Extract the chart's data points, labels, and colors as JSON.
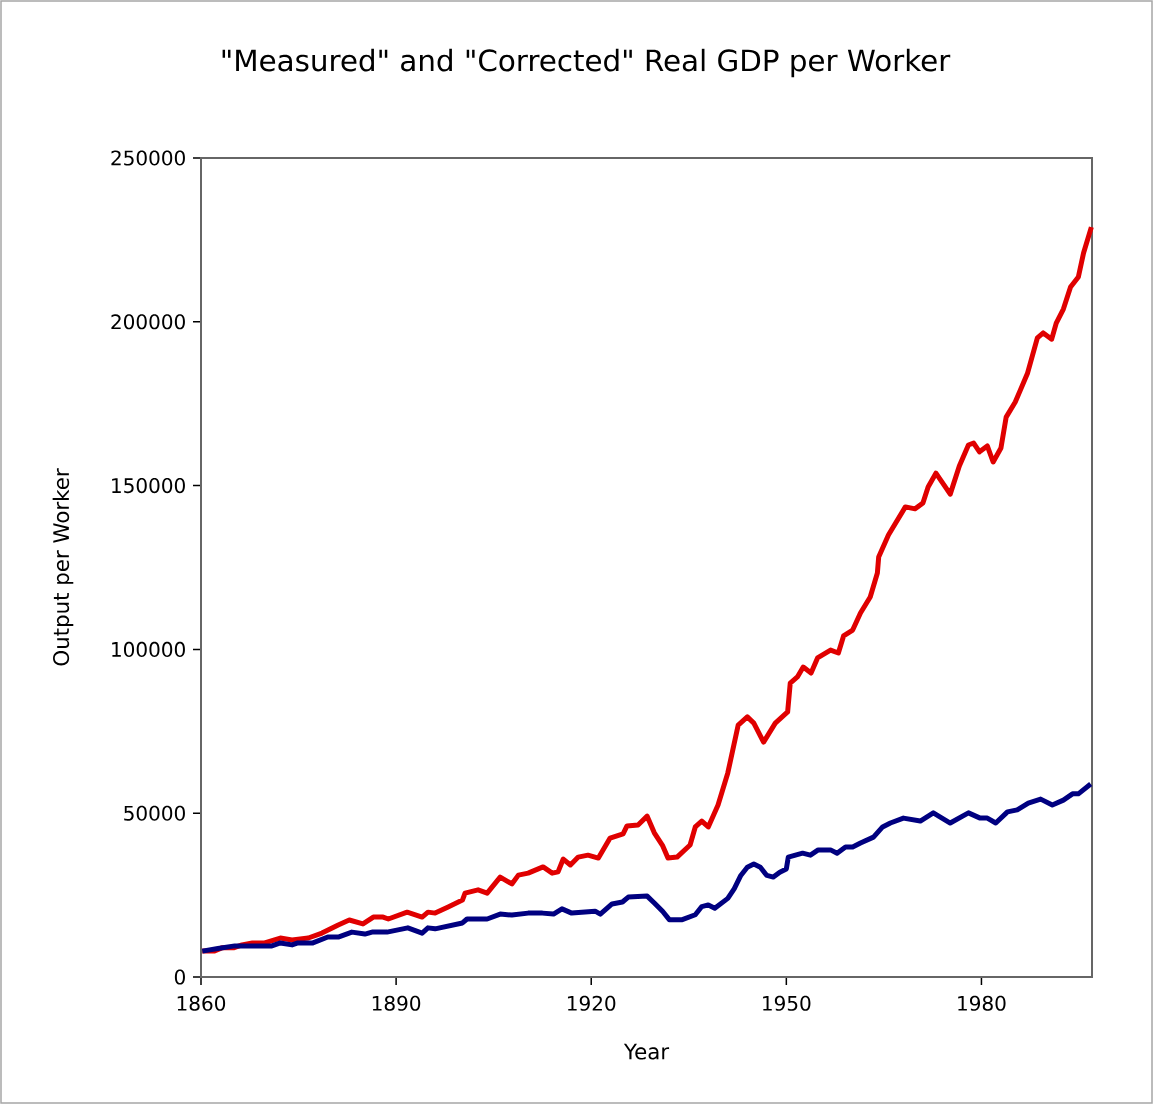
{
  "chart_data": {
    "type": "line",
    "title": "\"Measured\" and \"Corrected\" Real GDP per Worker",
    "xlabel": "Year",
    "ylabel": "Output per Worker",
    "xlim": [
      1860,
      1997
    ],
    "ylim": [
      0,
      250000
    ],
    "xticks": [
      1860,
      1890,
      1920,
      1950,
      1980
    ],
    "yticks": [
      0,
      50000,
      100000,
      150000,
      200000,
      250000
    ],
    "series": [
      {
        "color": "#e00000",
        "x": [
          1860.2,
          1862,
          1863.2,
          1865,
          1866.3,
          1867.9,
          1869.8,
          1872.2,
          1874,
          1876.5,
          1878.6,
          1881.1,
          1882.8,
          1884.9,
          1886.5,
          1888,
          1888.8,
          1891.7,
          1894,
          1894.9,
          1896,
          1898,
          1900.2,
          1900.6,
          1902.6,
          1904,
          1906,
          1907.8,
          1908.8,
          1910.3,
          1912.6,
          1914,
          1914.9,
          1915.7,
          1916.8,
          1918,
          1919.5,
          1921.1,
          1922.9,
          1924.9,
          1925.5,
          1927.2,
          1928.6,
          1929.7,
          1931,
          1931.8,
          1933.2,
          1935.2,
          1936,
          1937,
          1938,
          1939.5,
          1941,
          1942.6,
          1944,
          1945,
          1946.5,
          1948.3,
          1950.2,
          1950.6,
          1951.7,
          1952.6,
          1953.8,
          1954.8,
          1956.8,
          1958,
          1958.8,
          1960.2,
          1961.4,
          1962.9,
          1964,
          1964.2,
          1965.7,
          1968.3,
          1969.8,
          1971,
          1971.8,
          1973,
          1975.2,
          1976.6,
          1978,
          1978.8,
          1979.7,
          1980.9,
          1981.8,
          1983,
          1983.8,
          1985.2,
          1987.1,
          1988.6,
          1989.5,
          1990.8,
          1991.5,
          1992.6,
          1993.7,
          1994.9,
          1995.7,
          1996.9
        ],
        "values": [
          7900,
          7900,
          8900,
          8900,
          9800,
          10400,
          10400,
          11900,
          11300,
          11900,
          13400,
          15900,
          17400,
          16200,
          18300,
          18300,
          17700,
          19800,
          18300,
          19800,
          19500,
          21400,
          23500,
          25600,
          26600,
          25600,
          30500,
          28400,
          31100,
          31700,
          33600,
          31700,
          32100,
          36000,
          34200,
          36600,
          37200,
          36300,
          42400,
          43700,
          46100,
          46400,
          49100,
          44000,
          40000,
          36300,
          36600,
          40300,
          45800,
          47600,
          45800,
          52500,
          62300,
          76900,
          79400,
          77500,
          71700,
          77500,
          80900,
          89700,
          91600,
          94600,
          92800,
          97400,
          99800,
          98900,
          104100,
          105900,
          111100,
          116000,
          123300,
          128200,
          134900,
          143500,
          142900,
          144700,
          149600,
          153800,
          147400,
          156000,
          162400,
          163000,
          160300,
          162100,
          157200,
          161500,
          170900,
          175500,
          184400,
          195100,
          196600,
          194700,
          199600,
          203900,
          210600,
          213700,
          221000,
          228900
        ]
      },
      {
        "color": "#000080",
        "x": [
          1860.2,
          1862.6,
          1865.2,
          1870.9,
          1872.2,
          1874,
          1874.9,
          1877.2,
          1879.5,
          1881.1,
          1883.2,
          1885.2,
          1886.3,
          1888.6,
          1891.8,
          1894,
          1894.9,
          1896,
          1900.2,
          1900.9,
          1904,
          1906,
          1907.8,
          1910.3,
          1912.5,
          1914.2,
          1915.5,
          1917,
          1920.6,
          1921.4,
          1923.2,
          1924.8,
          1925.7,
          1928.6,
          1929.7,
          1931,
          1932,
          1934,
          1936,
          1937,
          1938,
          1939,
          1941,
          1942,
          1943,
          1944,
          1945,
          1946,
          1947,
          1948,
          1949,
          1950,
          1950.3,
          1952.5,
          1953.7,
          1954.9,
          1956.8,
          1957.8,
          1959.1,
          1960.2,
          1961.4,
          1963.4,
          1964.8,
          1966,
          1968,
          1970.6,
          1972.6,
          1975.2,
          1978,
          1979.8,
          1980.9,
          1982.2,
          1984,
          1985.5,
          1987.2,
          1989.1,
          1990.9,
          1992.6,
          1994,
          1994.9,
          1996.8
        ],
        "values": [
          7900,
          8700,
          9500,
          9500,
          10400,
          9800,
          10400,
          10400,
          12200,
          12200,
          13700,
          13100,
          13700,
          13700,
          15000,
          13400,
          15000,
          14700,
          16500,
          17700,
          17700,
          19200,
          18900,
          19500,
          19500,
          19200,
          20800,
          19500,
          20100,
          19200,
          22300,
          22900,
          24400,
          24700,
          22600,
          20000,
          17500,
          17500,
          19000,
          21500,
          22000,
          21000,
          24000,
          27000,
          31000,
          33500,
          34500,
          33500,
          31000,
          30500,
          32000,
          33000,
          36600,
          37800,
          37200,
          38800,
          38800,
          37800,
          39700,
          39700,
          40900,
          42700,
          45800,
          47000,
          48500,
          47600,
          50100,
          47000,
          50100,
          48500,
          48500,
          47000,
          50400,
          51000,
          53100,
          54300,
          52500,
          54000,
          55900,
          55900,
          58900
        ]
      }
    ]
  }
}
